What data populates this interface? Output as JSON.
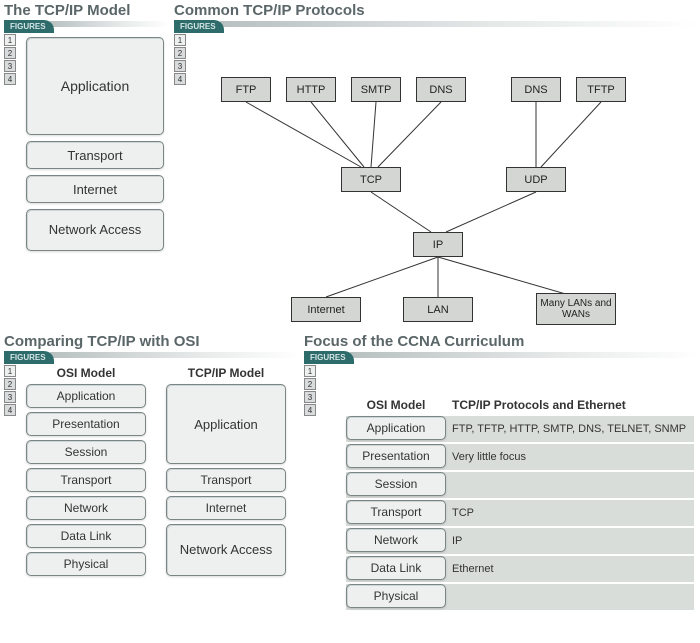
{
  "colors": {
    "title": "#5a6668",
    "tab_bg": "#2e6b6b",
    "layer_bg": "#eef0ef",
    "layer_border": "#7a8585",
    "net_bg": "#d4d6d4",
    "net_border": "#333333",
    "band_bg": "#d9ddda"
  },
  "panels": {
    "tcpip_model": {
      "title": "The TCP/IP Model",
      "figures_label": "FIGURES",
      "nums": [
        "1",
        "2",
        "3",
        "4"
      ],
      "layers": [
        "Application",
        "Transport",
        "Internet",
        "Network Access"
      ]
    },
    "protocols": {
      "title": "Common TCP/IP Protocols",
      "figures_label": "FIGURES",
      "nums": [
        "1",
        "2",
        "3",
        "4"
      ],
      "nodes": {
        "ftp": "FTP",
        "http": "HTTP",
        "smtp": "SMTP",
        "dns1": "DNS",
        "dns2": "DNS",
        "tftp": "TFTP",
        "tcp": "TCP",
        "udp": "UDP",
        "ip": "IP",
        "internet": "Internet",
        "lan": "LAN",
        "many": "Many LANs and WANs"
      }
    },
    "compare": {
      "title": "Comparing TCP/IP with OSI",
      "figures_label": "FIGURES",
      "nums": [
        "1",
        "2",
        "3",
        "4"
      ],
      "osi_head": "OSI Model",
      "tcpip_head": "TCP/IP Model",
      "osi": [
        "Application",
        "Presentation",
        "Session",
        "Transport",
        "Network",
        "Data Link",
        "Physical"
      ],
      "tcpip": [
        "Application",
        "Transport",
        "Internet",
        "Network Access"
      ]
    },
    "focus": {
      "title": "Focus of the CCNA Curriculum",
      "figures_label": "FIGURES",
      "nums": [
        "1",
        "2",
        "3",
        "4"
      ],
      "osi_head": "OSI Model",
      "proto_head": "TCP/IP Protocols and Ethernet",
      "rows": [
        {
          "osi": "Application",
          "proto": "FTP, TFTP, HTTP, SMTP, DNS, TELNET, SNMP"
        },
        {
          "osi": "Presentation",
          "proto": "Very little focus"
        },
        {
          "osi": "Session",
          "proto": ""
        },
        {
          "osi": "Transport",
          "proto": "TCP"
        },
        {
          "osi": "Network",
          "proto": "IP"
        },
        {
          "osi": "Data Link",
          "proto": "Ethernet"
        },
        {
          "osi": "Physical",
          "proto": ""
        }
      ]
    }
  }
}
